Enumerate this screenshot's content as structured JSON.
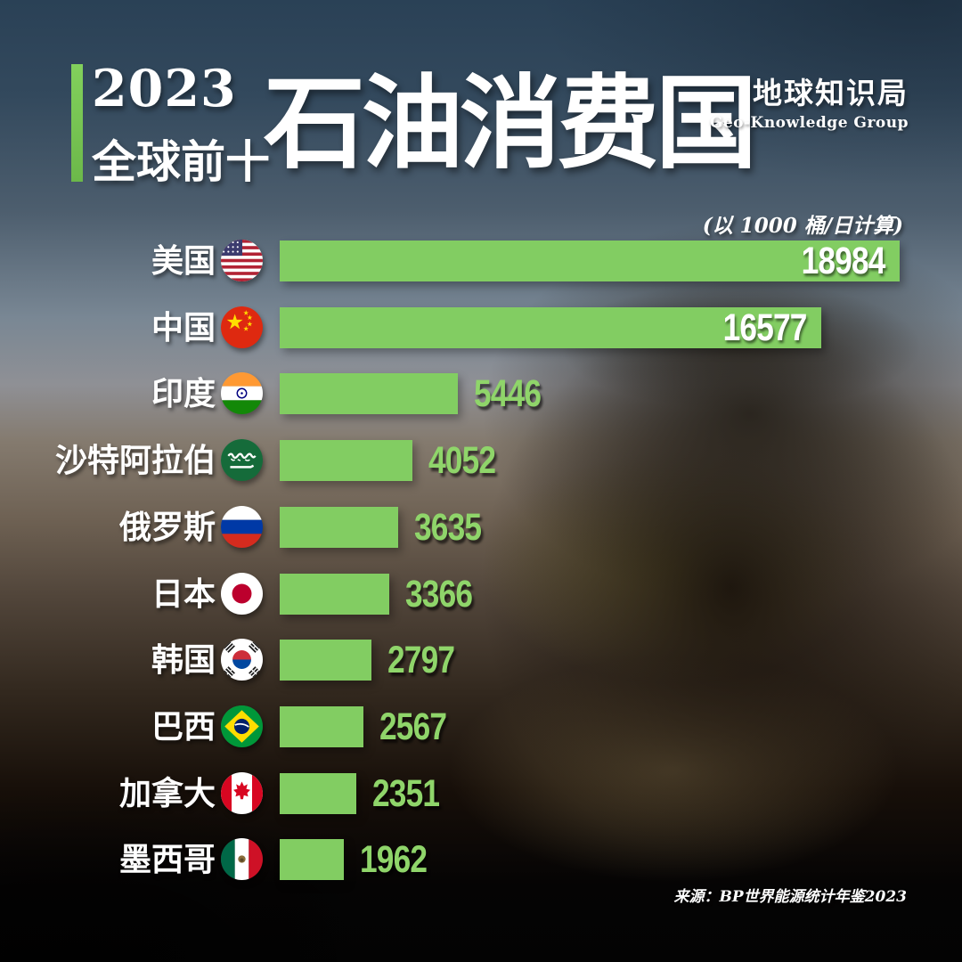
{
  "header": {
    "year": "2023",
    "scope": "全球前十",
    "title": "石油消费国",
    "brand_cn": "地球知识局",
    "brand_en": "Geo-Knowledge Group"
  },
  "chart_data": {
    "type": "bar",
    "orientation": "horizontal",
    "title": "2023 全球前十 石油消费国",
    "unit_note": "(以 1000 桶/日计算)",
    "unit": "1000 桶/日",
    "source": "来源：BP世界能源统计年鉴2023",
    "xlim": [
      0,
      19500
    ],
    "grid": false,
    "legend": "none",
    "bar_color": "#82cd62",
    "value_color_outside": "#8fd56a",
    "value_color_inside": "#ffffff",
    "categories": [
      "美国",
      "中国",
      "印度",
      "沙特阿拉伯",
      "俄罗斯",
      "日本",
      "韩国",
      "巴西",
      "加拿大",
      "墨西哥"
    ],
    "values": [
      18984,
      16577,
      5446,
      4052,
      3635,
      3366,
      2797,
      2567,
      2351,
      1962
    ],
    "rows": [
      {
        "country": "美国",
        "flag": "us",
        "value": 18984
      },
      {
        "country": "中国",
        "flag": "cn",
        "value": 16577
      },
      {
        "country": "印度",
        "flag": "in",
        "value": 5446
      },
      {
        "country": "沙特阿拉伯",
        "flag": "sa",
        "value": 4052
      },
      {
        "country": "俄罗斯",
        "flag": "ru",
        "value": 3635
      },
      {
        "country": "日本",
        "flag": "jp",
        "value": 3366
      },
      {
        "country": "韩国",
        "flag": "kr",
        "value": 2797
      },
      {
        "country": "巴西",
        "flag": "br",
        "value": 2567
      },
      {
        "country": "加拿大",
        "flag": "ca",
        "value": 2351
      },
      {
        "country": "墨西哥",
        "flag": "mx",
        "value": 1962
      }
    ]
  }
}
